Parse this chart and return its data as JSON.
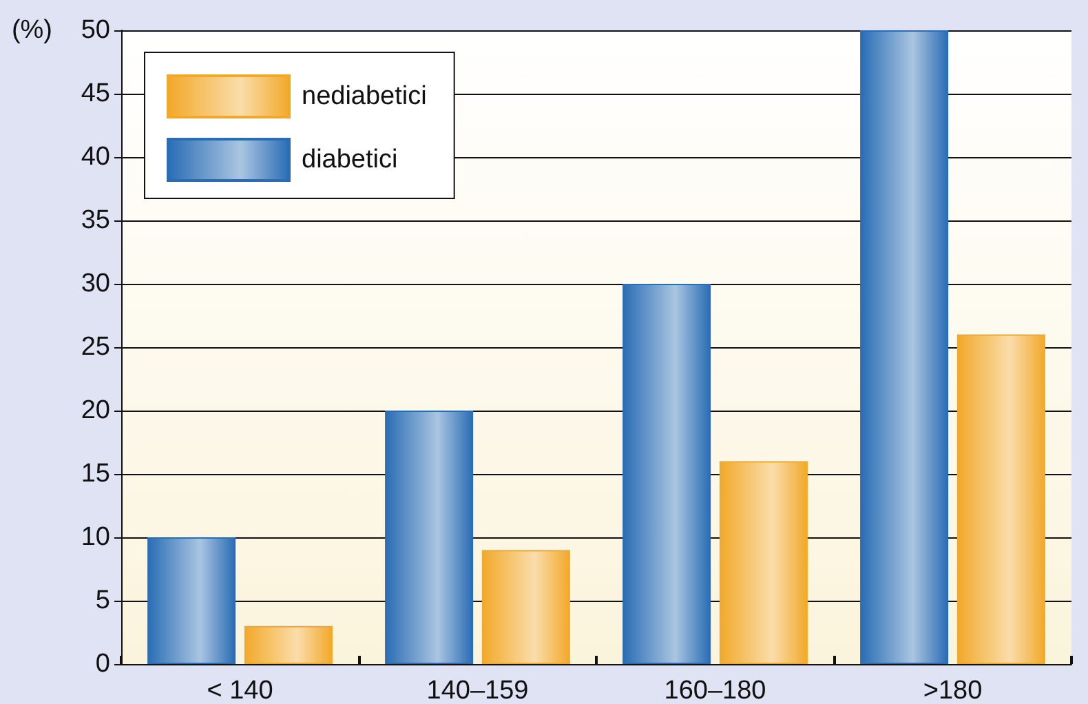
{
  "chart_data": {
    "type": "bar",
    "ylabel": "(%)",
    "categories": [
      "< 140",
      "140–159",
      "160–180",
      ">180"
    ],
    "series": [
      {
        "name": "diabetici",
        "color": "#2a6db5",
        "values": [
          10,
          20,
          30,
          50
        ]
      },
      {
        "name": "nediabetici",
        "color": "#f2a92a",
        "values": [
          3,
          9,
          16,
          26
        ]
      }
    ],
    "ylim": [
      0,
      50
    ],
    "yticks": [
      0,
      5,
      10,
      15,
      20,
      25,
      30,
      35,
      40,
      45,
      50
    ],
    "grid": "y",
    "legend": "top left"
  }
}
